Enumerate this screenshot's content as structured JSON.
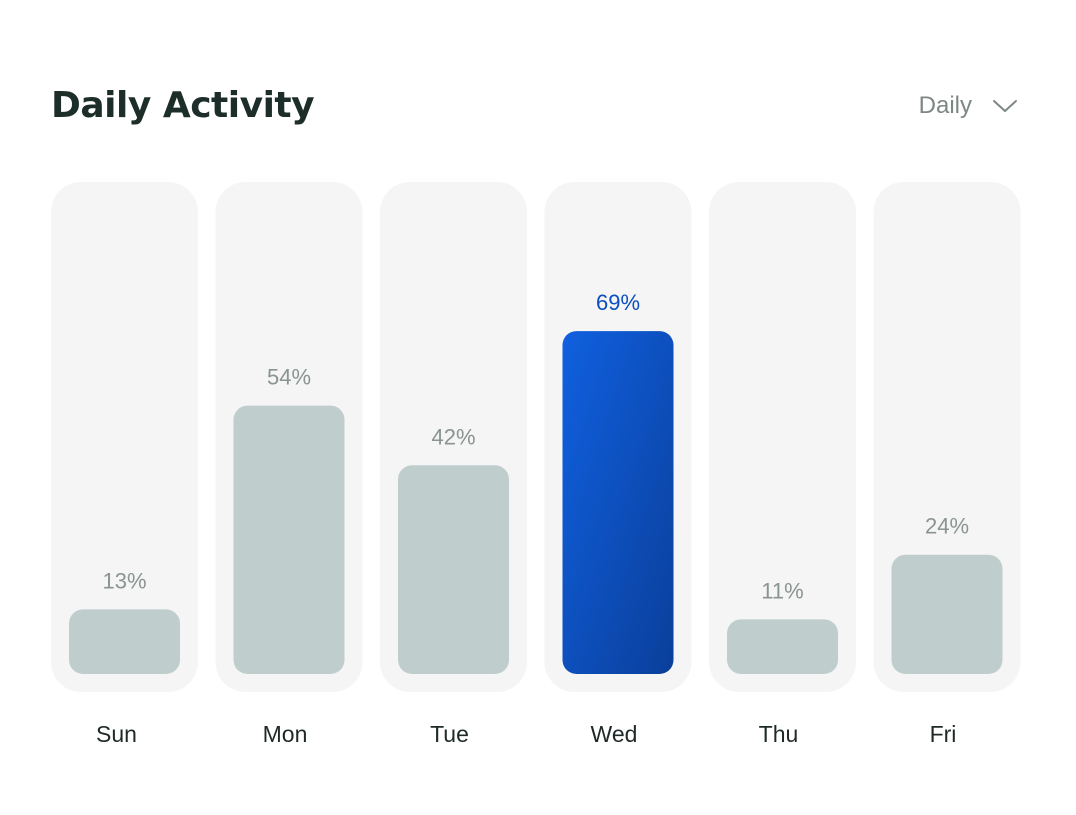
{
  "header": {
    "title": "Daily Activity",
    "period_select": {
      "value": "Daily",
      "icon": "chevron-down-icon"
    }
  },
  "colors": {
    "bar": "#bfcecd",
    "column_background": "#f5f5f5",
    "active_start": "#1060e0",
    "active_end": "#0a3f9a",
    "active_label": "#0b4dc2"
  },
  "chart_data": {
    "type": "bar",
    "title": "Daily Activity",
    "categories": [
      "Sun",
      "Mon",
      "Tue",
      "Wed",
      "Thu",
      "Fri"
    ],
    "values": [
      13,
      54,
      42,
      69,
      11,
      24
    ],
    "value_labels": [
      "13%",
      "54%",
      "42%",
      "69%",
      "11%",
      "24%"
    ],
    "unit": "%",
    "ylim": [
      0,
      100
    ],
    "highlighted_category": "Wed",
    "grid": false,
    "legend": "none"
  }
}
